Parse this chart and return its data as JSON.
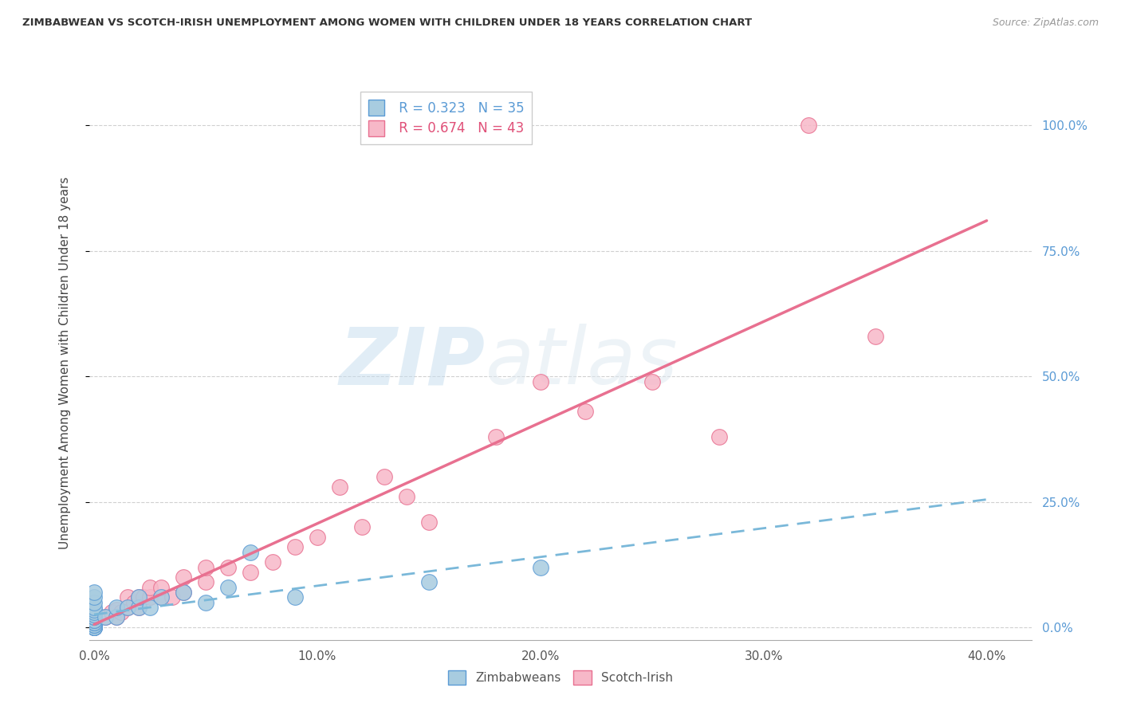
{
  "title": "ZIMBABWEAN VS SCOTCH-IRISH UNEMPLOYMENT AMONG WOMEN WITH CHILDREN UNDER 18 YEARS CORRELATION CHART",
  "source": "Source: ZipAtlas.com",
  "ylabel": "Unemployment Among Women with Children Under 18 years",
  "x_tick_labels": [
    "0.0%",
    "10.0%",
    "20.0%",
    "30.0%",
    "40.0%"
  ],
  "x_tick_values": [
    0.0,
    0.1,
    0.2,
    0.3,
    0.4
  ],
  "y_tick_values": [
    0.0,
    0.25,
    0.5,
    0.75,
    1.0
  ],
  "y_tick_labels_right": [
    "0.0%",
    "25.0%",
    "50.0%",
    "75.0%",
    "100.0%"
  ],
  "xlim": [
    -0.002,
    0.42
  ],
  "ylim": [
    -0.025,
    1.08
  ],
  "zimbabwean_color": "#a8cce0",
  "zimbabwean_edge_color": "#5b9bd5",
  "scotchirish_color": "#f7b8c8",
  "scotchirish_edge_color": "#e87090",
  "zimbabwean_R": 0.323,
  "zimbabwean_N": 35,
  "scotchirish_R": 0.674,
  "scotchirish_N": 43,
  "watermark_zip": "ZIP",
  "watermark_atlas": "atlas",
  "zim_line_color": "#7ab8d9",
  "si_line_color": "#e87090",
  "zimbabwean_scatter_x": [
    0.0,
    0.0,
    0.0,
    0.0,
    0.0,
    0.0,
    0.0,
    0.0,
    0.0,
    0.0,
    0.0,
    0.0,
    0.0,
    0.0,
    0.0,
    0.0,
    0.0,
    0.0,
    0.0,
    0.0,
    0.005,
    0.01,
    0.01,
    0.015,
    0.02,
    0.02,
    0.025,
    0.03,
    0.04,
    0.05,
    0.06,
    0.07,
    0.09,
    0.15,
    0.2
  ],
  "zimbabwean_scatter_y": [
    0.0,
    0.0,
    0.0,
    0.0,
    0.0,
    0.005,
    0.005,
    0.01,
    0.01,
    0.015,
    0.015,
    0.02,
    0.02,
    0.025,
    0.03,
    0.035,
    0.04,
    0.05,
    0.06,
    0.07,
    0.02,
    0.02,
    0.04,
    0.04,
    0.04,
    0.06,
    0.04,
    0.06,
    0.07,
    0.05,
    0.08,
    0.15,
    0.06,
    0.09,
    0.12
  ],
  "scotchirish_scatter_x": [
    0.0,
    0.0,
    0.0,
    0.0,
    0.0,
    0.0,
    0.005,
    0.008,
    0.01,
    0.01,
    0.012,
    0.015,
    0.015,
    0.018,
    0.02,
    0.02,
    0.022,
    0.025,
    0.025,
    0.03,
    0.03,
    0.035,
    0.04,
    0.04,
    0.05,
    0.05,
    0.06,
    0.07,
    0.08,
    0.09,
    0.1,
    0.11,
    0.12,
    0.13,
    0.14,
    0.15,
    0.18,
    0.2,
    0.22,
    0.25,
    0.28,
    0.32,
    0.35
  ],
  "scotchirish_scatter_y": [
    0.0,
    0.005,
    0.01,
    0.015,
    0.02,
    0.03,
    0.02,
    0.03,
    0.02,
    0.035,
    0.03,
    0.04,
    0.06,
    0.05,
    0.04,
    0.06,
    0.06,
    0.06,
    0.08,
    0.06,
    0.08,
    0.06,
    0.07,
    0.1,
    0.09,
    0.12,
    0.12,
    0.11,
    0.13,
    0.16,
    0.18,
    0.28,
    0.2,
    0.3,
    0.26,
    0.21,
    0.38,
    0.49,
    0.43,
    0.49,
    0.38,
    1.0,
    0.58
  ]
}
